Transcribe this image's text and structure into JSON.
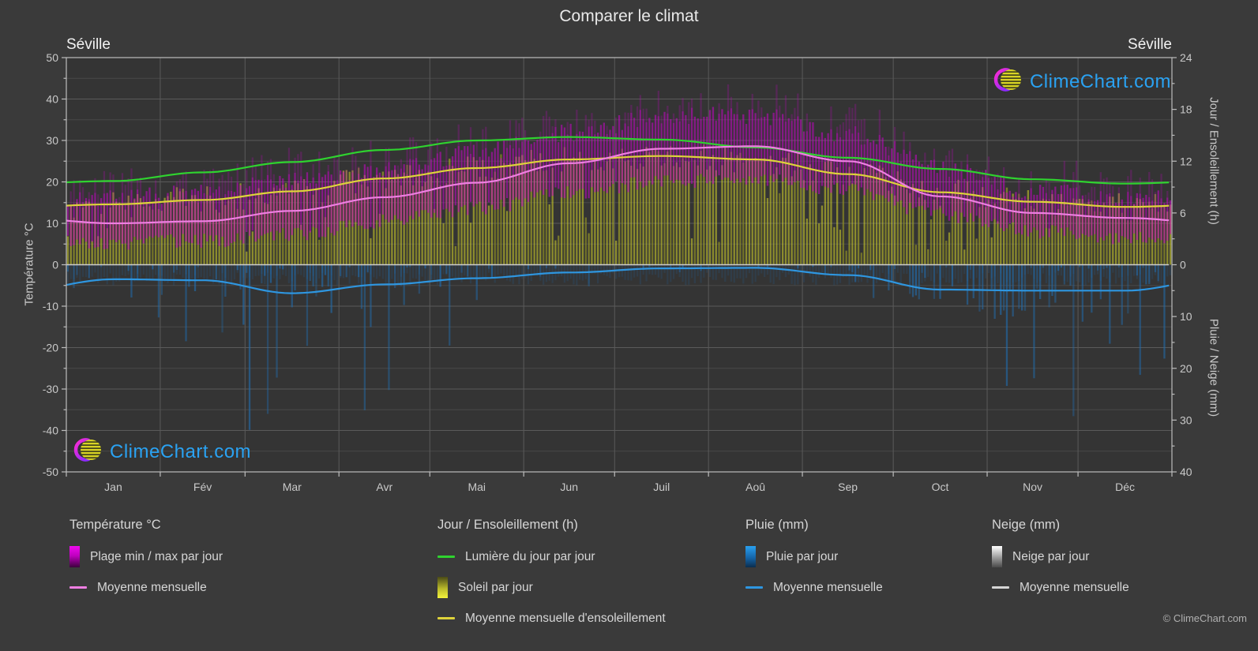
{
  "title": "Comparer le climat",
  "station_left": "Séville",
  "station_right": "Séville",
  "watermark_text": "ClimeChart.com",
  "copyright": "© ClimeChart.com",
  "colors": {
    "background": "#3a3a3a",
    "accent_blue": "#2aa2f2",
    "daylight_line": "#2fd32f",
    "sunshine_line": "#ded33a",
    "temp_mean_line": "#ee7ee2",
    "rain_line": "#2e96e0",
    "snow_line": "#cdcdcd",
    "temp_range_fill": "#cc00cc",
    "sun_fill": "#d6d628",
    "rain_fill": "#2270ae"
  },
  "axes": {
    "temperature": {
      "label": "Température °C",
      "min": -50,
      "max": 50,
      "major_step": 10,
      "minor_step": 5
    },
    "sun": {
      "label": "Jour / Ensoleillement (h)",
      "ticks": [
        0,
        6,
        12,
        18,
        24
      ],
      "minor_step": 3,
      "max_hours": 24
    },
    "precip": {
      "label": "Pluie / Neige (mm)",
      "ticks": [
        0,
        10,
        20,
        30,
        40
      ],
      "minor_step": 5,
      "max_mm": 40,
      "inverted": true
    }
  },
  "legend": {
    "groups": [
      {
        "title": "Température °C",
        "items": [
          {
            "label": "Plage min / max par jour"
          },
          {
            "label": "Moyenne mensuelle"
          }
        ]
      },
      {
        "title": "Jour / Ensoleillement (h)",
        "items": [
          {
            "label": "Lumière du jour par jour"
          },
          {
            "label": "Soleil par jour"
          },
          {
            "label": "Moyenne mensuelle d'ensoleillement"
          }
        ]
      },
      {
        "title": "Pluie (mm)",
        "items": [
          {
            "label": "Pluie par jour"
          },
          {
            "label": "Moyenne mensuelle"
          }
        ]
      },
      {
        "title": "Neige (mm)",
        "items": [
          {
            "label": "Neige par jour"
          },
          {
            "label": "Moyenne mensuelle"
          }
        ]
      }
    ]
  },
  "chart_data": {
    "type": "climate-composite",
    "title": "Comparer le climat",
    "location": "Séville",
    "months": [
      "Jan",
      "Fév",
      "Mar",
      "Avr",
      "Mai",
      "Jun",
      "Juil",
      "Aoû",
      "Sep",
      "Oct",
      "Nov",
      "Déc"
    ],
    "month_days": [
      31,
      28,
      31,
      30,
      31,
      30,
      31,
      31,
      30,
      31,
      30,
      31
    ],
    "temp_axis_range_c": [
      -50,
      50
    ],
    "sun_axis_range_h": [
      0,
      24
    ],
    "precip_axis_range_mm": [
      0,
      40
    ],
    "series": {
      "temp_mean_monthly_c": [
        10.0,
        10.5,
        13.0,
        16.3,
        19.8,
        24.5,
        28.0,
        28.6,
        25.0,
        16.5,
        12.5,
        11.3
      ],
      "temp_max_daily_avg_c": [
        16.0,
        17.5,
        20.0,
        23.0,
        27.0,
        32.0,
        35.8,
        36.0,
        31.5,
        23.5,
        17.5,
        16.3
      ],
      "temp_min_daily_avg_c": [
        5.2,
        5.8,
        7.5,
        10.5,
        13.5,
        17.5,
        20.0,
        20.5,
        18.0,
        12.0,
        8.0,
        6.5
      ],
      "daylight_hours": [
        9.7,
        10.7,
        11.9,
        13.3,
        14.4,
        14.8,
        14.5,
        13.6,
        12.4,
        11.1,
        9.9,
        9.4
      ],
      "sunshine_mean_hours": [
        7.0,
        7.5,
        8.5,
        10.0,
        11.2,
        12.2,
        12.6,
        12.2,
        10.5,
        8.4,
        7.3,
        6.7
      ],
      "rain_mean_mm_per_day": [
        2.8,
        3.0,
        5.5,
        3.8,
        2.6,
        1.5,
        0.7,
        0.6,
        2.0,
        4.8,
        5.0,
        5.0
      ],
      "snow_mean_mm_per_day": [
        0,
        0,
        0,
        0,
        0,
        0,
        0,
        0,
        0,
        0,
        0,
        0
      ]
    }
  }
}
